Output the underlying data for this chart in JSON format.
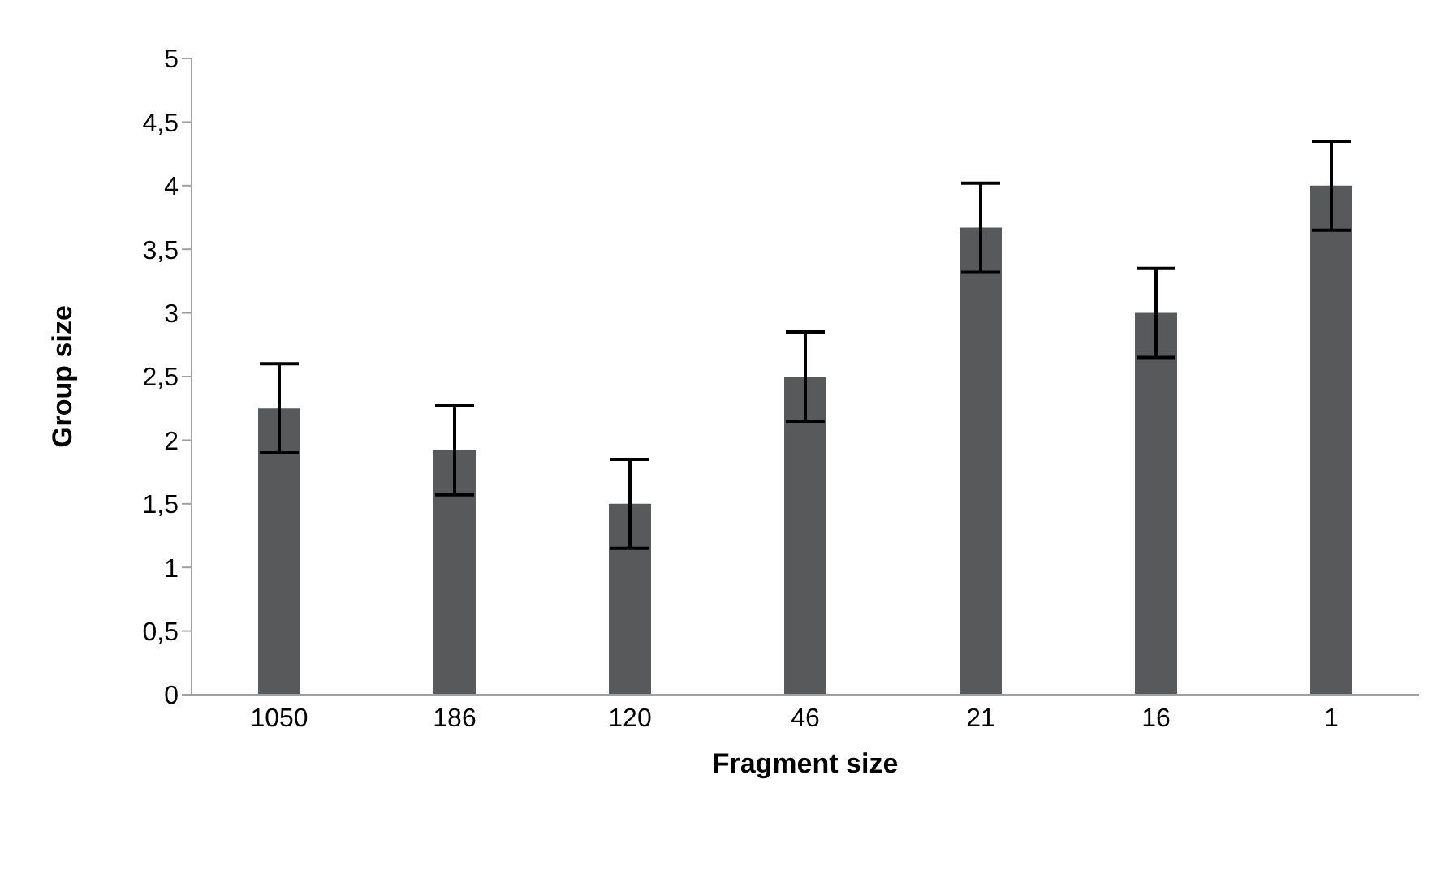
{
  "chart_data": {
    "type": "bar",
    "xlabel": "Fragment size",
    "ylabel": "Group size",
    "categories": [
      "1050",
      "186",
      "120",
      "46",
      "21",
      "16",
      "1"
    ],
    "values": [
      2.25,
      1.92,
      1.5,
      2.5,
      3.67,
      3.0,
      4.0
    ],
    "errors": [
      0.35,
      0.35,
      0.35,
      0.35,
      0.35,
      0.35,
      0.35
    ],
    "color": "#58595b",
    "ylim": [
      0,
      5
    ],
    "yticks": [
      0,
      {
        "value": 0.5,
        "label": "0,5"
      },
      1,
      {
        "value": 1.5,
        "label": "1,5"
      },
      2,
      {
        "value": 2.5,
        "label": "2,5"
      },
      3,
      {
        "value": 3.5,
        "label": "3,5"
      },
      4,
      {
        "value": 4.5,
        "label": "4,5"
      },
      5
    ],
    "grid": false,
    "legend": false
  }
}
